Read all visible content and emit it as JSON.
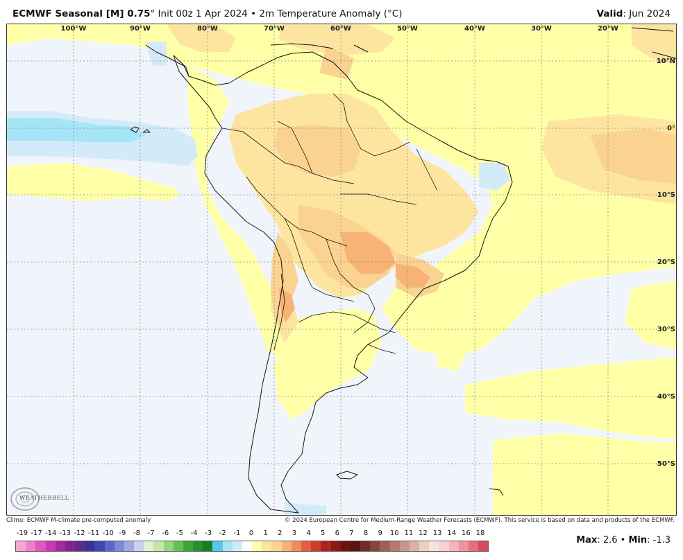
{
  "header": {
    "title_bold": "ECMWF Seasonal [M] 0.75",
    "title_rest": "° Init 00z 1 Apr 2024 • 2m Temperature Anomaly (°C)",
    "valid_label": "Valid",
    "valid_value": ": Jun 2024"
  },
  "map": {
    "lon_labels": [
      "100°W",
      "90°W",
      "80°W",
      "70°W",
      "60°W",
      "50°W",
      "40°W",
      "30°W",
      "20°W"
    ],
    "lat_labels": [
      "10°N",
      "0°",
      "10°S",
      "20°S",
      "30°S",
      "40°S",
      "50°S"
    ],
    "colors": {
      "ocean_base": "#f0f4fb",
      "land_base": "#ffffa8",
      "warm1": "#fde5a0",
      "warm2": "#fbd391",
      "warm3": "#f7b376",
      "cool1": "#d3ebf9",
      "cool2": "#a6e5f5",
      "grid": "#888888",
      "coast": "#111111"
    },
    "logo_text": "WEATHERBELL"
  },
  "footer": {
    "climo": "Climo: ECMWF M-climate pre-computed anomaly",
    "copyright": "© 2024 European Centre for Medium-Range Weather Forecasts (ECMWF). This service is based on data and products of the ECMWF."
  },
  "legend": {
    "labels": [
      "-19",
      "-17",
      "-14",
      "-13",
      "-12",
      "-11",
      "-10",
      "-9",
      "-8",
      "-7",
      "-6",
      "-5",
      "-4",
      "-3",
      "-2",
      "-1",
      "0",
      "1",
      "2",
      "3",
      "4",
      "5",
      "6",
      "7",
      "8",
      "9",
      "10",
      "11",
      "12",
      "13",
      "14",
      "16",
      "18"
    ],
    "colors": [
      "#f7a6d6",
      "#ef7fcb",
      "#e356c2",
      "#c838b4",
      "#a42a9d",
      "#842390",
      "#5e2b8c",
      "#3a2f9a",
      "#3c46b5",
      "#5867cc",
      "#7d87dc",
      "#a4a6e6",
      "#c8d2f0",
      "#e1f0d6",
      "#c4e7a9",
      "#96d57e",
      "#64bf55",
      "#3aa637",
      "#26922d",
      "#1a7c26",
      "#57c6ec",
      "#a6e5f5",
      "#d3ebf9",
      "#ffffff",
      "#ffffa8",
      "#fde5a0",
      "#fbd391",
      "#f7b376",
      "#f08b5f",
      "#e4603f",
      "#cc3d2a",
      "#b0221b",
      "#8d1815",
      "#6e1210",
      "#571410",
      "#6f2e27",
      "#86463d",
      "#9f6055",
      "#b57a6f",
      "#c9958a",
      "#dbb1a6",
      "#ecd0c6",
      "#f6e3db",
      "#f8d0d4",
      "#f5b3ba",
      "#ef94a0",
      "#e66e7e",
      "#d84a5c"
    ],
    "max_label": "Max",
    "max_value": ": 2.6 • ",
    "min_label": "Min",
    "min_value": ": -1.3"
  }
}
